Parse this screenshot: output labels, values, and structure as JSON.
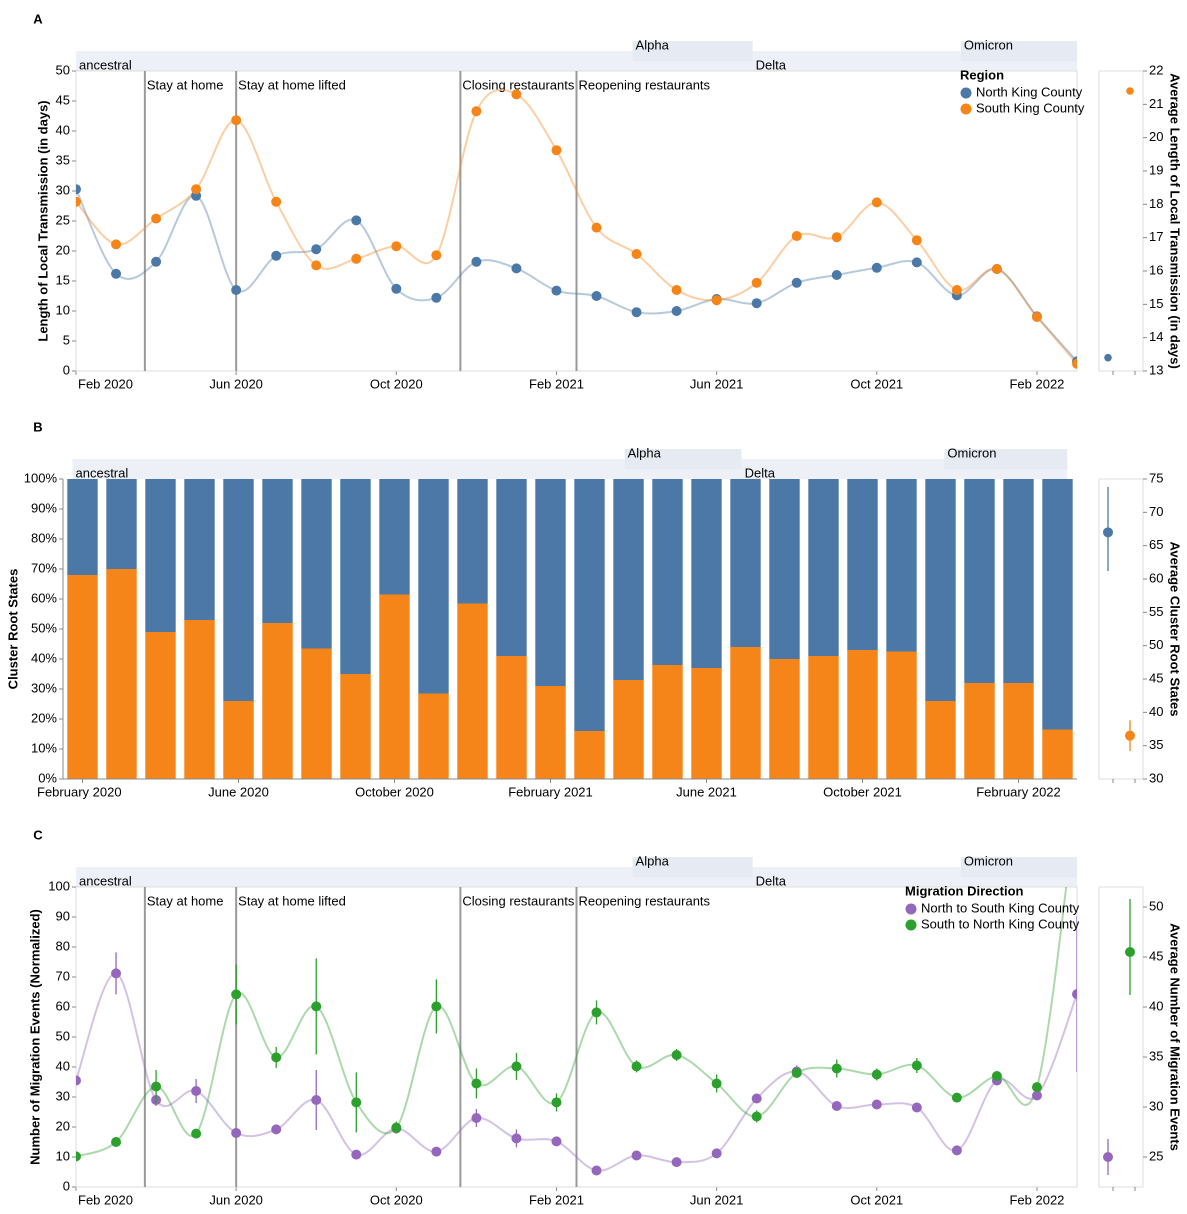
{
  "chart_data": [
    {
      "type": "line",
      "panel": "A",
      "y_label": "Length of Local Transmission (in days)",
      "categories": [
        "Feb 2020",
        null,
        null,
        null,
        "Jun 2020",
        null,
        null,
        null,
        "Oct 2020",
        null,
        null,
        null,
        "Feb 2021",
        null,
        null,
        null,
        "Jun 2021",
        null,
        null,
        null,
        "Oct 2021",
        null,
        null,
        null,
        "Feb 2022",
        null
      ],
      "ylim": [
        0,
        50
      ],
      "yticks": [
        0,
        5,
        10,
        15,
        20,
        25,
        30,
        35,
        40,
        45,
        50
      ],
      "legend_title": "Region",
      "legend": "top-right",
      "series": [
        {
          "name": "North King County",
          "color": "#4c78a8",
          "values": [
            30.3,
            16.2,
            18.2,
            29.2,
            13.5,
            19.2,
            20.3,
            25.1,
            13.7,
            12.2,
            18.2,
            17.1,
            13.4,
            12.5,
            9.8,
            10.0,
            12.0,
            11.3,
            14.7,
            16.0,
            17.2,
            18.1,
            12.6,
            17.0,
            9.1,
            1.6
          ]
        },
        {
          "name": "South King County",
          "color": "#f58518",
          "values": [
            28.2,
            21.1,
            25.4,
            30.3,
            41.8,
            28.2,
            17.6,
            18.7,
            20.8,
            19.3,
            43.3,
            46.1,
            36.8,
            23.9,
            19.5,
            13.5,
            11.8,
            14.7,
            22.5,
            22.3,
            28.1,
            21.8,
            13.5,
            17.0,
            9.0,
            1.2
          ]
        }
      ],
      "variants": [
        {
          "label": "ancestral",
          "range": [
            0,
            16.9
          ],
          "row": "lower"
        },
        {
          "label": "Delta",
          "range": [
            16.9,
            25.25
          ],
          "row": "lower"
        },
        {
          "label": "Alpha",
          "range": [
            13.9,
            16.9
          ],
          "row": "upper"
        },
        {
          "label": "Omicron",
          "range": [
            22.1,
            25.25
          ],
          "row": "upper"
        }
      ],
      "events": [
        {
          "label": "Stay at home",
          "x": 1.72
        },
        {
          "label": "Stay at home lifted",
          "x": 4.0
        },
        {
          "label": "Closing restaurants",
          "x": 9.6
        },
        {
          "label": "Reopening restaurants",
          "x": 12.5
        }
      ]
    },
    {
      "type": "dot",
      "y_label": "Average Length of Local Transmission (in days)",
      "categories": [
        null,
        null
      ],
      "values": [
        13.4,
        21.4
      ],
      "colors": [
        "#4c78a8",
        "#f58518"
      ],
      "ylim": [
        13,
        22
      ],
      "yticks": [
        13,
        14,
        15,
        16,
        17,
        18,
        19,
        20,
        21,
        22
      ]
    },
    {
      "type": "stacked_bar",
      "panel": "B",
      "y_label": "Cluster Root States",
      "categories": [
        "February 2020",
        null,
        null,
        null,
        "June 2020",
        null,
        null,
        null,
        "October 2020",
        null,
        null,
        null,
        "February 2021",
        null,
        null,
        null,
        "June 2021",
        null,
        null,
        null,
        "October 2021",
        null,
        null,
        null,
        "February 2022",
        null
      ],
      "ylim": [
        0,
        100
      ],
      "yticks": [
        {
          "value": 0,
          "label": "0%"
        },
        {
          "value": 10,
          "label": "10%"
        },
        {
          "value": 20,
          "label": "20%"
        },
        {
          "value": 30,
          "label": "30%"
        },
        {
          "value": 40,
          "label": "40%"
        },
        {
          "value": 50,
          "label": "50%"
        },
        {
          "value": 60,
          "label": "60%"
        },
        {
          "value": 70,
          "label": "70%"
        },
        {
          "value": 80,
          "label": "80%"
        },
        {
          "value": 90,
          "label": "90%"
        },
        {
          "value": 100,
          "label": "100%"
        }
      ],
      "series": [
        {
          "color": "#f58518",
          "values": [
            68,
            70,
            49,
            53,
            26,
            52,
            43.5,
            35,
            61.5,
            28.5,
            58.5,
            41,
            31,
            16,
            33,
            38,
            37,
            44,
            40,
            41,
            43,
            42.5,
            26,
            32,
            32,
            16.5
          ]
        },
        {
          "color": "#4c78a8",
          "values": [
            32,
            30,
            51,
            47,
            74,
            48,
            56.5,
            65,
            38.5,
            71.5,
            41.5,
            59,
            69,
            84,
            67,
            62,
            63,
            56,
            60,
            59,
            57,
            57.5,
            74,
            68,
            68,
            83.5
          ]
        }
      ],
      "variants": [
        {
          "label": "ancestral",
          "range": [
            0,
            16.9
          ],
          "row": "lower"
        },
        {
          "label": "Delta",
          "range": [
            16.9,
            25.25
          ],
          "row": "lower"
        },
        {
          "label": "Alpha",
          "range": [
            13.9,
            16.9
          ],
          "row": "upper"
        },
        {
          "label": "Omicron",
          "range": [
            22.1,
            25.25
          ],
          "row": "upper"
        }
      ]
    },
    {
      "type": "range_dot",
      "y_label": "Average Cluster Root States",
      "categories": [
        null,
        null
      ],
      "values": [
        67,
        36.5
      ],
      "lower": [
        61.2,
        34.2
      ],
      "upper": [
        73.8,
        38.8
      ],
      "colors": [
        "#4c78a8",
        "#f58518"
      ],
      "ylim": [
        30,
        75
      ],
      "yticks": [
        30,
        35,
        40,
        45,
        50,
        55,
        60,
        65,
        70,
        75
      ]
    },
    {
      "type": "line",
      "panel": "C",
      "y_label": "Number of Migration Events (Normalized)",
      "categories": [
        "Feb 2020",
        null,
        null,
        null,
        "Jun 2020",
        null,
        null,
        null,
        "Oct 2020",
        null,
        null,
        null,
        "Feb 2021",
        null,
        null,
        null,
        "Jun 2021",
        null,
        null,
        null,
        "Oct 2021",
        null,
        null,
        null,
        "Feb 2022",
        null
      ],
      "ylim": [
        0,
        100
      ],
      "yticks": [
        0,
        10,
        20,
        30,
        40,
        50,
        60,
        70,
        80,
        90,
        100
      ],
      "legend_title": "Migration Direction",
      "legend": "top-right",
      "series": [
        {
          "name": "North to South King County",
          "color": "#9467bd",
          "values": [
            35.5,
            71.2,
            29,
            32,
            18,
            19.2,
            29,
            10.8,
            19.5,
            11.8,
            23,
            16.2,
            15.2,
            5.5,
            10.5,
            8.3,
            11.2,
            29.5,
            38.5,
            27,
            27.5,
            26.5,
            12.2,
            35.5,
            30.5,
            64.3
          ],
          "errors": [
            null,
            7,
            2,
            4,
            null,
            null,
            10,
            null,
            null,
            null,
            3,
            3,
            null,
            null,
            null,
            null,
            null,
            null,
            2,
            null,
            null,
            null,
            null,
            null,
            null,
            26
          ]
        },
        {
          "name": "South to North King County",
          "color": "#2ca02c",
          "values": [
            10.2,
            15,
            33.5,
            17.8,
            64.2,
            43.2,
            60.2,
            28.2,
            19.8,
            60.2,
            34.5,
            40.2,
            28.2,
            58.2,
            40.2,
            44,
            34.5,
            23.5,
            38,
            39.5,
            37.5,
            40.5,
            29.8,
            37,
            33.3,
            130
          ],
          "errors": [
            null,
            null,
            5.5,
            null,
            10,
            3.5,
            16,
            10,
            2,
            9,
            5,
            4.5,
            3,
            4,
            2,
            2,
            3,
            2,
            null,
            3,
            2,
            2.5,
            null,
            null,
            null,
            null
          ]
        }
      ],
      "variants": [
        {
          "label": "ancestral",
          "range": [
            0,
            16.9
          ],
          "row": "lower"
        },
        {
          "label": "Delta",
          "range": [
            16.9,
            25.25
          ],
          "row": "lower"
        },
        {
          "label": "Alpha",
          "range": [
            13.9,
            16.9
          ],
          "row": "upper"
        },
        {
          "label": "Omicron",
          "range": [
            22.1,
            25.25
          ],
          "row": "upper"
        }
      ],
      "events": [
        {
          "label": "Stay at home",
          "x": 1.72
        },
        {
          "label": "Stay at home lifted",
          "x": 4.0
        },
        {
          "label": "Closing restaurants",
          "x": 9.6
        },
        {
          "label": "Reopening restaurants",
          "x": 12.5
        }
      ]
    },
    {
      "type": "range_dot",
      "y_label": "Average Number of Migration Events",
      "categories": [
        null,
        null
      ],
      "values": [
        25,
        45.5
      ],
      "lower": [
        23.2,
        41.2
      ],
      "upper": [
        26.8,
        50.8
      ],
      "colors": [
        "#9467bd",
        "#2ca02c"
      ],
      "ylim": [
        22,
        52
      ],
      "yticks": [
        25,
        30,
        35,
        40,
        45,
        50
      ]
    }
  ]
}
